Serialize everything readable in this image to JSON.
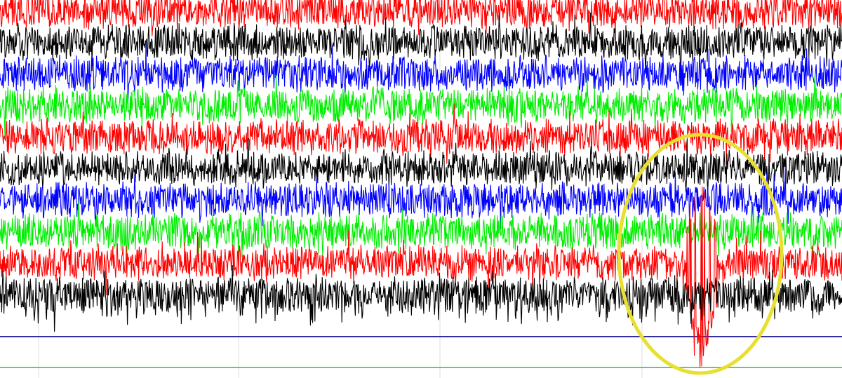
{
  "traces": [
    {
      "color": "#ff0000"
    },
    {
      "color": "#000000"
    },
    {
      "color": "#0000ff"
    },
    {
      "color": "#00ee00"
    },
    {
      "color": "#ff0000"
    },
    {
      "color": "#000000"
    },
    {
      "color": "#0000ff"
    },
    {
      "color": "#00ee00"
    },
    {
      "color": "#ff0000"
    },
    {
      "color": "#000000"
    }
  ],
  "highlight": {
    "color": "#e8e030"
  }
}
